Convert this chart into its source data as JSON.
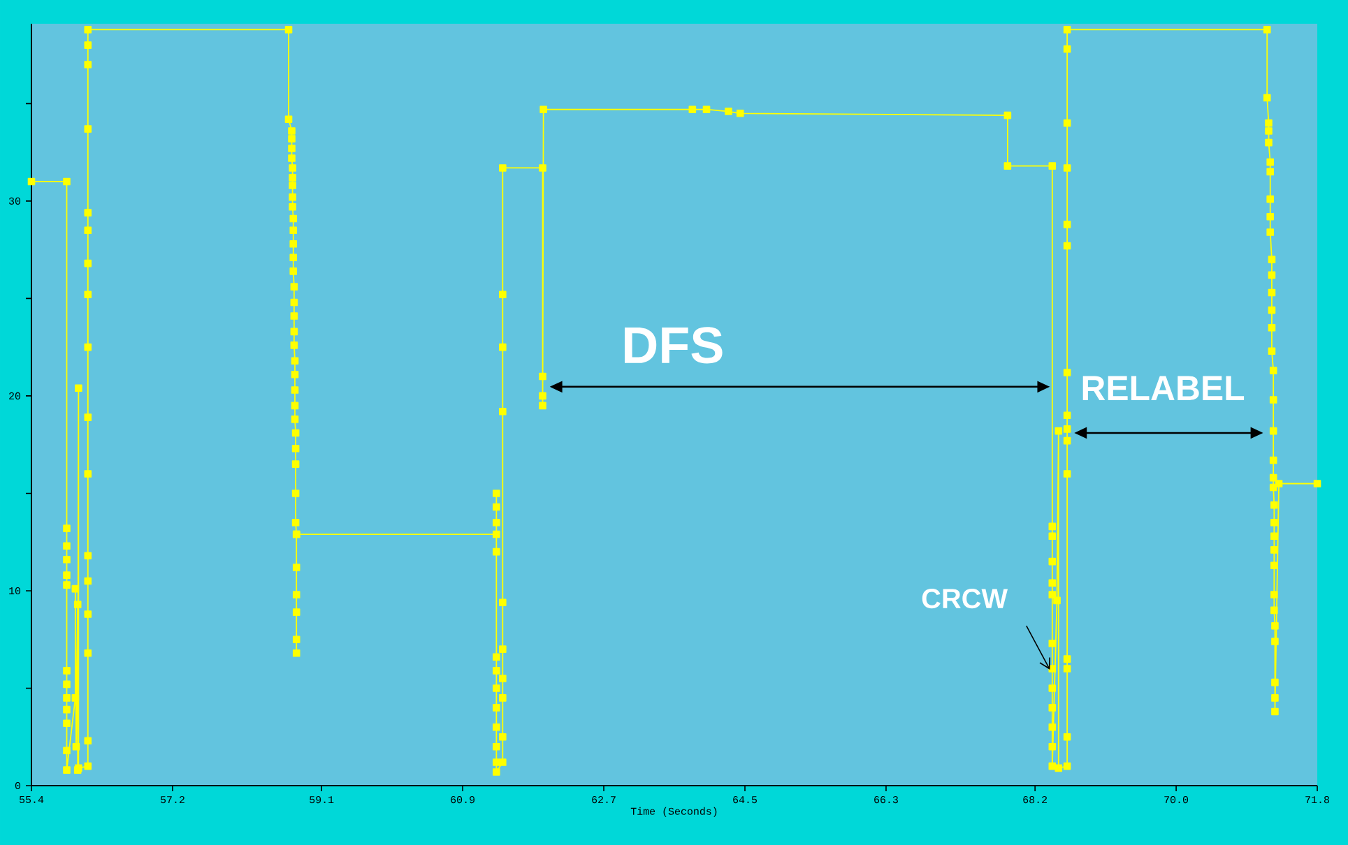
{
  "chart_data": {
    "type": "line",
    "xlabel": "Time (Seconds)",
    "xlim": [
      55.4,
      71.8
    ],
    "ylim": [
      0,
      39.1
    ],
    "xticks": [
      55.4,
      57.2,
      59.1,
      60.9,
      62.7,
      64.5,
      66.3,
      68.2,
      {
        "value": 70,
        "label": "70.0"
      },
      71.8
    ],
    "yticks": [
      0,
      {
        "value": 5,
        "label": null
      },
      10,
      {
        "value": 15,
        "label": null
      },
      20,
      {
        "value": 25,
        "label": null
      },
      30,
      {
        "value": 35,
        "label": null
      }
    ],
    "marker": "square",
    "line_style": "solid",
    "color": "#ffff00",
    "x": [
      55.4,
      55.85,
      55.85,
      55.85,
      55.85,
      55.85,
      55.85,
      55.85,
      55.85,
      55.85,
      55.85,
      55.85,
      55.85,
      55.85,
      55.96,
      55.96,
      55.97,
      55.99,
      55.99,
      56.0,
      56.0,
      56.12,
      56.12,
      56.12,
      56.12,
      56.12,
      56.12,
      56.12,
      56.12,
      56.12,
      56.12,
      56.12,
      56.12,
      56.12,
      56.12,
      56.12,
      56.12,
      56.12,
      58.68,
      58.68,
      58.72,
      58.72,
      58.72,
      58.72,
      58.73,
      58.73,
      58.73,
      58.73,
      58.73,
      58.74,
      58.74,
      58.74,
      58.74,
      58.74,
      58.75,
      58.75,
      58.75,
      58.75,
      58.75,
      58.76,
      58.76,
      58.76,
      58.76,
      58.76,
      58.77,
      58.77,
      58.77,
      58.77,
      58.77,
      58.78,
      58.78,
      58.78,
      58.78,
      58.78,
      58.78,
      58.78,
      61.33,
      61.33,
      61.33,
      61.33,
      61.33,
      61.33,
      61.33,
      61.33,
      61.33,
      61.33,
      61.33,
      61.33,
      61.33,
      61.41,
      61.41,
      61.41,
      61.41,
      61.41,
      61.41,
      61.41,
      61.41,
      61.41,
      61.41,
      61.92,
      61.92,
      61.92,
      61.92,
      61.93,
      63.83,
      64.01,
      64.29,
      64.44,
      67.85,
      67.85,
      68.42,
      68.42,
      68.42,
      68.42,
      68.42,
      68.42,
      68.42,
      68.42,
      68.42,
      68.42,
      68.42,
      68.42,
      68.42,
      68.48,
      68.5,
      68.5,
      68.61,
      68.61,
      68.61,
      68.61,
      68.61,
      68.61,
      68.61,
      68.61,
      68.61,
      68.61,
      68.61,
      68.61,
      68.61,
      68.61,
      68.61,
      71.16,
      71.16,
      71.18,
      71.18,
      71.18,
      71.2,
      71.2,
      71.2,
      71.2,
      71.2,
      71.22,
      71.22,
      71.22,
      71.22,
      71.22,
      71.22,
      71.24,
      71.24,
      71.24,
      71.24,
      71.24,
      71.24,
      71.25,
      71.25,
      71.25,
      71.25,
      71.25,
      71.25,
      71.25,
      71.26,
      71.26,
      71.26,
      71.26,
      71.26,
      71.31,
      71.8
    ],
    "values": [
      31.0,
      31.0,
      13.2,
      12.3,
      11.6,
      10.8,
      10.3,
      5.9,
      5.2,
      4.5,
      3.9,
      3.2,
      1.8,
      0.8,
      4.5,
      10.1,
      2.0,
      9.3,
      0.8,
      20.4,
      0.9,
      1.0,
      2.3,
      6.8,
      8.8,
      10.5,
      11.8,
      16.0,
      18.9,
      22.5,
      25.2,
      26.8,
      28.5,
      29.4,
      33.7,
      37.0,
      38.0,
      38.8,
      38.8,
      34.2,
      33.6,
      33.2,
      32.7,
      32.2,
      31.7,
      31.2,
      30.8,
      30.2,
      29.7,
      29.1,
      28.5,
      27.8,
      27.1,
      26.4,
      25.6,
      24.8,
      24.1,
      23.3,
      22.6,
      21.8,
      21.1,
      20.3,
      19.5,
      18.8,
      18.1,
      17.3,
      16.5,
      15.0,
      13.5,
      12.9,
      11.2,
      9.8,
      8.9,
      7.5,
      6.8,
      12.9,
      12.9,
      15.0,
      14.3,
      13.5,
      12.0,
      6.6,
      5.9,
      5.0,
      4.0,
      3.0,
      2.0,
      1.2,
      0.7,
      1.2,
      2.5,
      4.5,
      5.5,
      7.0,
      9.4,
      19.2,
      22.5,
      25.2,
      31.7,
      31.7,
      21.0,
      20.0,
      19.5,
      34.7,
      34.7,
      34.7,
      34.6,
      34.5,
      34.4,
      31.8,
      31.8,
      13.3,
      12.8,
      11.5,
      10.4,
      9.8,
      7.3,
      6.0,
      5.0,
      4.0,
      3.0,
      2.0,
      1.0,
      9.5,
      18.2,
      0.9,
      1.0,
      2.5,
      6.0,
      6.5,
      16.0,
      17.7,
      18.3,
      19.0,
      21.2,
      27.7,
      28.8,
      31.7,
      34.0,
      37.8,
      38.8,
      38.8,
      35.3,
      34.0,
      33.6,
      33.0,
      32.0,
      31.5,
      30.1,
      29.2,
      28.4,
      27.0,
      26.2,
      25.3,
      24.4,
      23.5,
      22.3,
      21.3,
      19.8,
      18.2,
      16.7,
      15.8,
      15.3,
      14.4,
      13.5,
      12.8,
      12.1,
      11.3,
      9.8,
      9.0,
      8.2,
      7.4,
      5.3,
      4.5,
      3.8,
      15.5,
      15.5
    ],
    "annotations": [
      "DFS",
      "RELABEL",
      {
        "text": "CRCW",
        "x": 68.39,
        "y": 5.95
      }
    ]
  }
}
